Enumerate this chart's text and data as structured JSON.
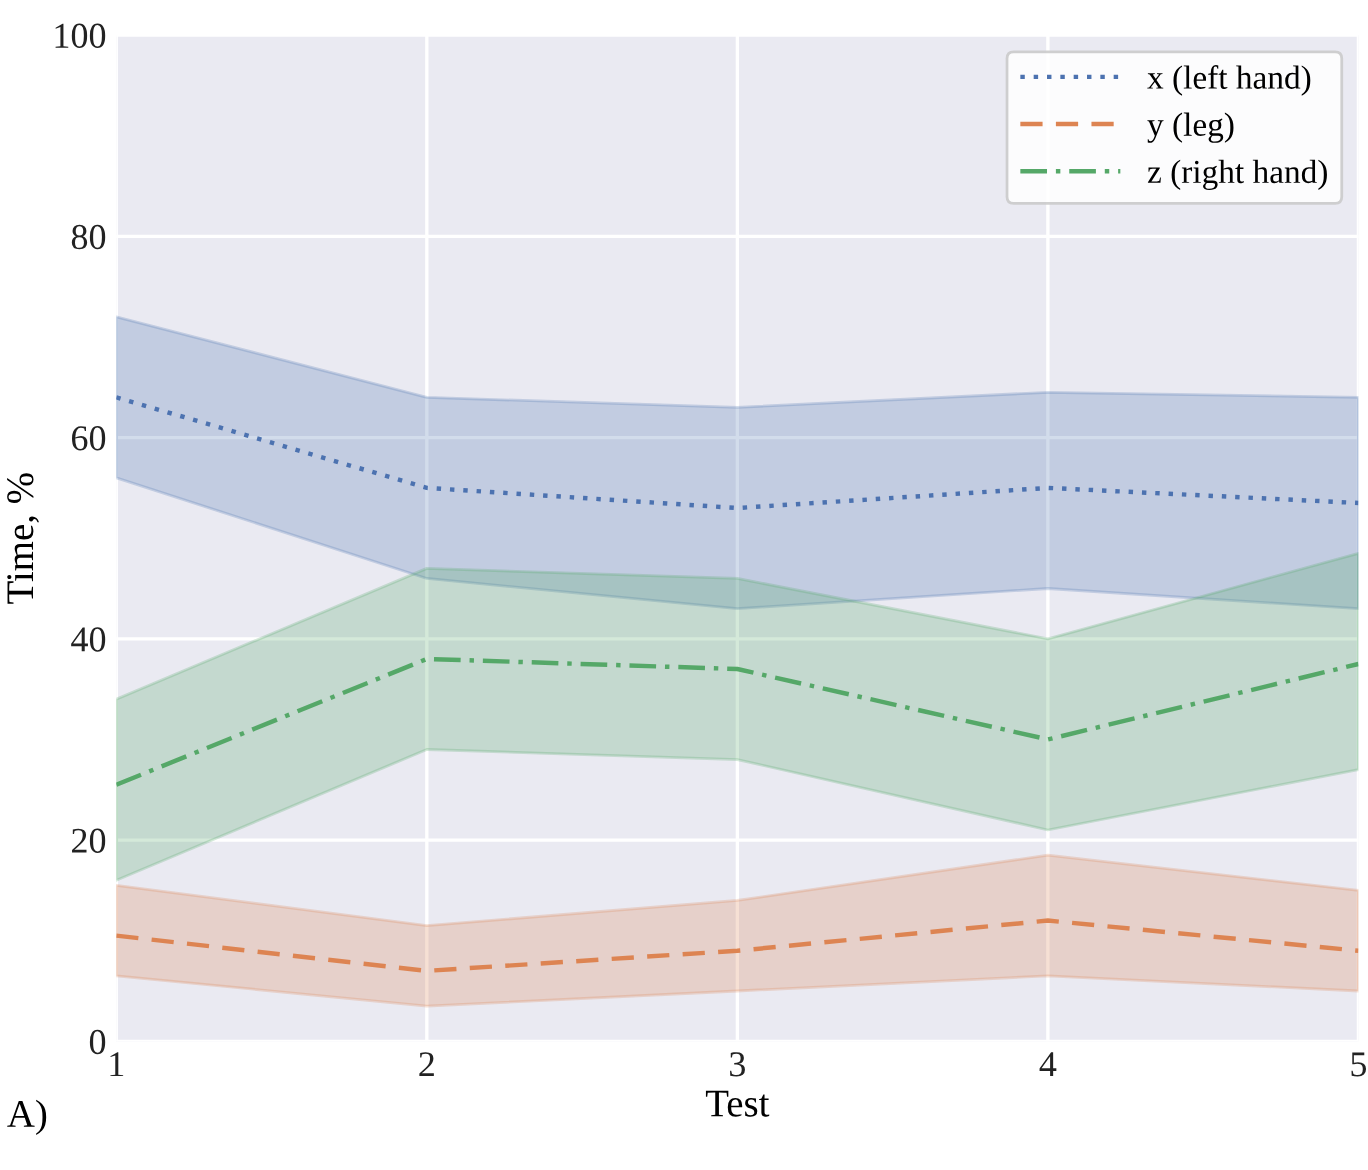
{
  "chart_data": {
    "type": "line",
    "xlabel": "Test",
    "ylabel": "Time, %",
    "x": [
      1,
      2,
      3,
      4,
      5
    ],
    "series": [
      {
        "name": "x (left hand)",
        "color": "#4c72b0",
        "line_style": "dotted",
        "values": [
          64,
          55,
          53,
          55,
          53.5
        ],
        "lower": [
          56,
          46,
          43,
          45,
          43
        ],
        "upper": [
          72,
          64,
          63,
          64.5,
          64
        ]
      },
      {
        "name": "y (leg)",
        "color": "#dd8452",
        "line_style": "dashed",
        "values": [
          10.5,
          7,
          9,
          12,
          9
        ],
        "lower": [
          6.5,
          3.5,
          5,
          6.5,
          5
        ],
        "upper": [
          15.5,
          11.5,
          14,
          18.5,
          15
        ]
      },
      {
        "name": "z (right hand)",
        "color": "#55a868",
        "line_style": "dashdot",
        "values": [
          25.5,
          38,
          37,
          30,
          37.5
        ],
        "lower": [
          16,
          29,
          28,
          21,
          27
        ],
        "upper": [
          34,
          47,
          46,
          40,
          48.5
        ]
      }
    ],
    "xlim": [
      1,
      5
    ],
    "xticks": [
      1,
      2,
      3,
      4,
      5
    ],
    "ylim": [
      0,
      100
    ],
    "yticks": [
      0,
      20,
      40,
      60,
      80,
      100
    ],
    "grid": true,
    "legend": "top right",
    "marker": "none",
    "annotations": [
      "A)"
    ]
  }
}
